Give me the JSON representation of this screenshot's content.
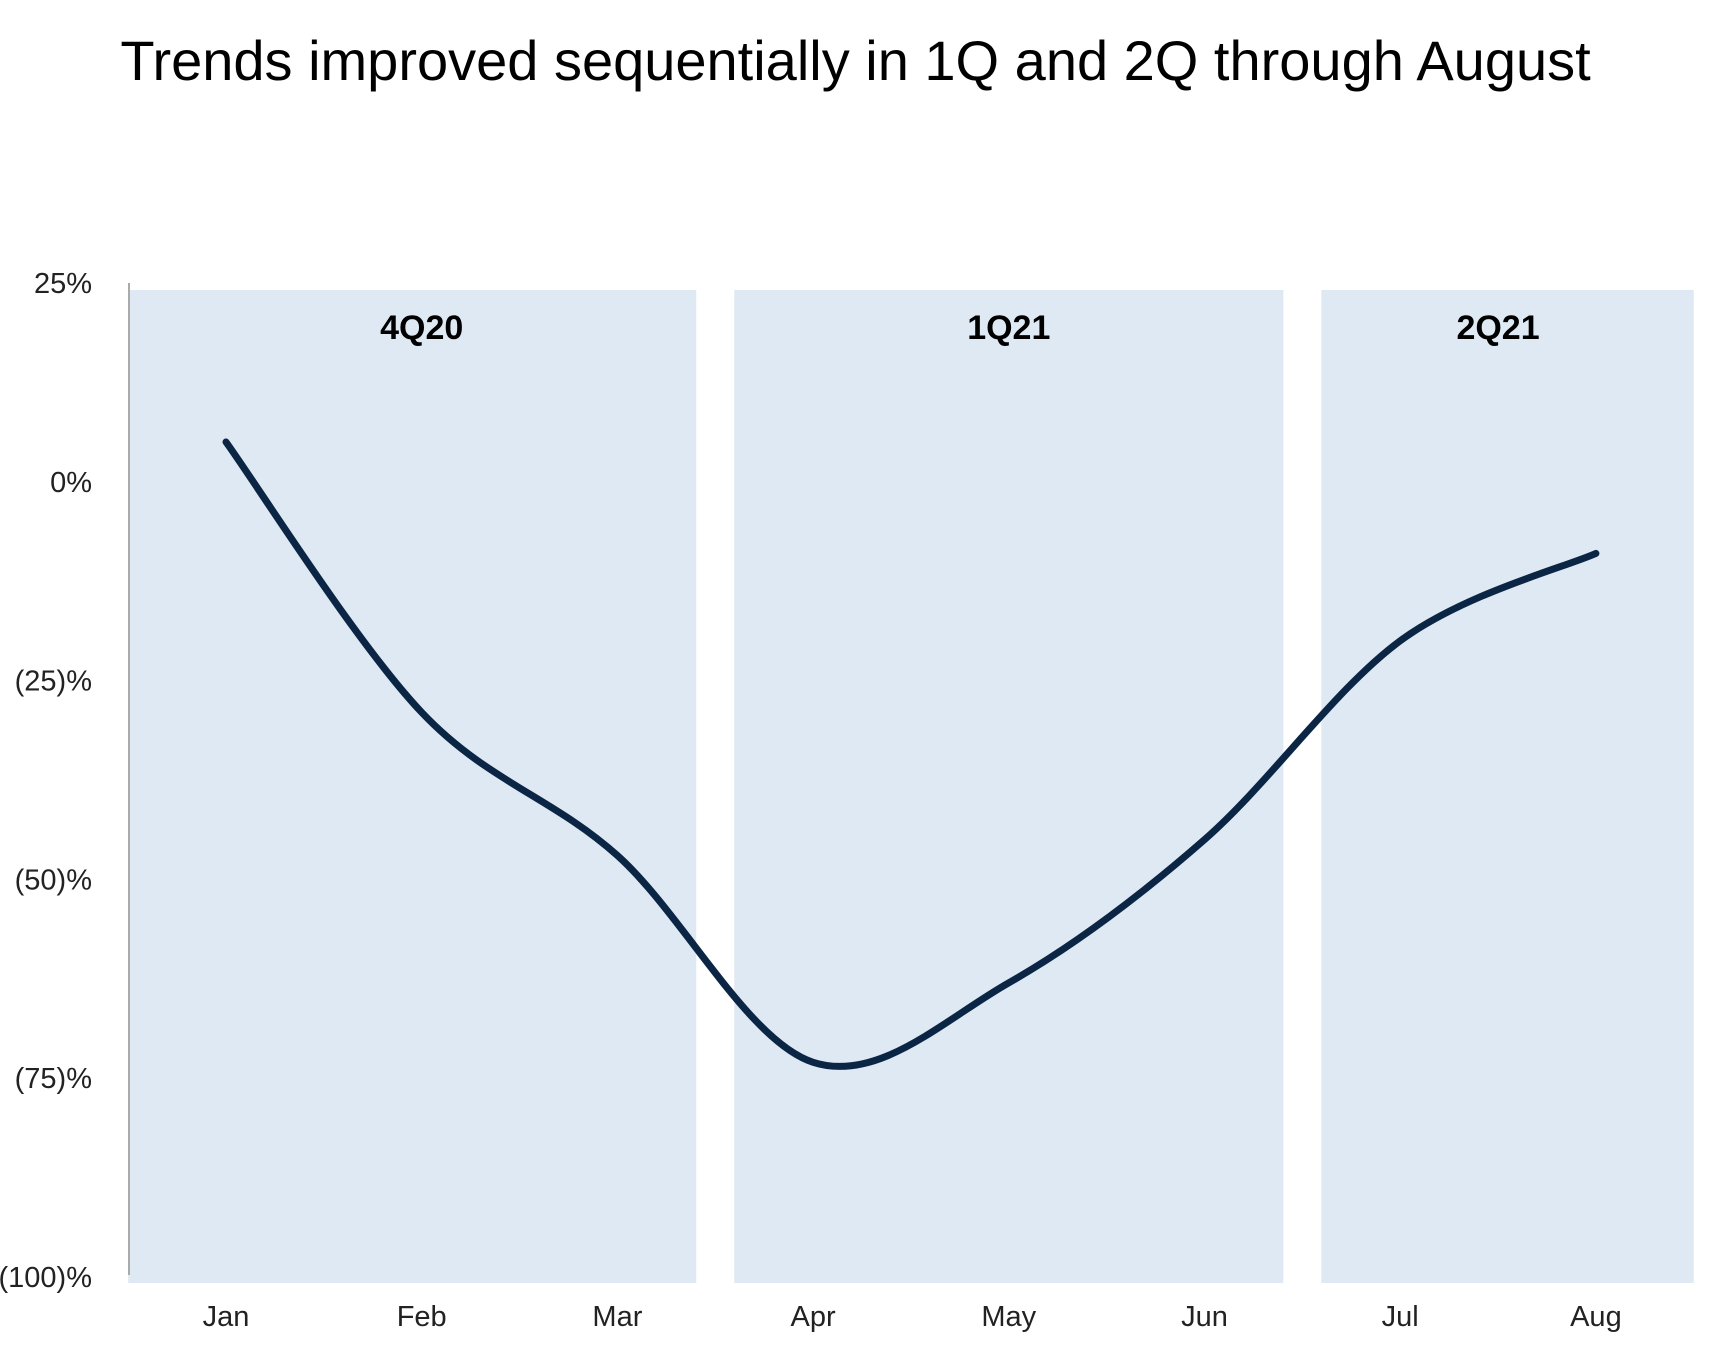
{
  "chart_data": {
    "type": "line",
    "title": "Trends improved sequentially in 1Q and 2Q through August",
    "xlabel": "",
    "ylabel": "",
    "categories": [
      "Jan",
      "Feb",
      "Mar",
      "Apr",
      "May",
      "Jun",
      "Jul",
      "Aug"
    ],
    "series": [
      {
        "values": [
          5,
          -29,
          -47,
          -73,
          -63,
          -45,
          -20,
          -9
        ]
      }
    ],
    "ylim": [
      -100,
      25
    ],
    "yticks": [
      {
        "value": 25,
        "label": "25%"
      },
      {
        "value": 0,
        "label": "0%"
      },
      {
        "value": -25,
        "label": "(25)%"
      },
      {
        "value": -50,
        "label": "(50)%"
      },
      {
        "value": -75,
        "label": "(75)%"
      },
      {
        "value": -100,
        "label": "(100)%"
      }
    ],
    "bands": [
      {
        "label": "4Q20",
        "start": "Jan",
        "end": "Mar"
      },
      {
        "label": "1Q21",
        "start": "Apr",
        "end": "Jun"
      },
      {
        "label": "2Q21",
        "start": "Jul",
        "end": "Aug"
      }
    ],
    "grid": false,
    "legend": "none",
    "colors": {
      "line": "#0b2545",
      "band": "#dfe9f4",
      "axis": "#aaaaaa"
    }
  }
}
